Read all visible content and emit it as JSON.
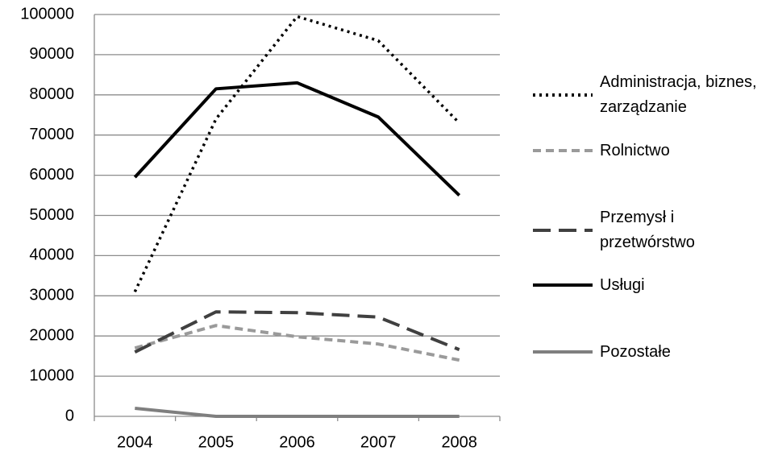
{
  "chart_data": {
    "type": "line",
    "categories": [
      "2004",
      "2005",
      "2006",
      "2007",
      "2008"
    ],
    "series": [
      {
        "name": "Administracja, biznes, zarządzanie",
        "color": "#000000",
        "dash": "dot",
        "values": [
          31000,
          74000,
          99500,
          93500,
          73000
        ]
      },
      {
        "name": "Rolnictwo",
        "color": "#9a9a9a",
        "dash": "dash",
        "values": [
          17000,
          22600,
          19800,
          18000,
          14000
        ]
      },
      {
        "name": "Przemysł i przetwórstwo",
        "color": "#404040",
        "dash": "longdash",
        "values": [
          16000,
          26000,
          25800,
          24700,
          16600
        ]
      },
      {
        "name": "Usługi",
        "color": "#000000",
        "dash": "solid",
        "values": [
          59500,
          81500,
          83000,
          74500,
          55000
        ]
      },
      {
        "name": "Pozostałe",
        "color": "#7f7f7f",
        "dash": "solid",
        "values": [
          2000,
          0,
          0,
          0,
          0
        ]
      }
    ],
    "ylim": [
      0,
      100000
    ],
    "yticks": [
      0,
      10000,
      20000,
      30000,
      40000,
      50000,
      60000,
      70000,
      80000,
      90000,
      100000
    ],
    "grid": true
  }
}
